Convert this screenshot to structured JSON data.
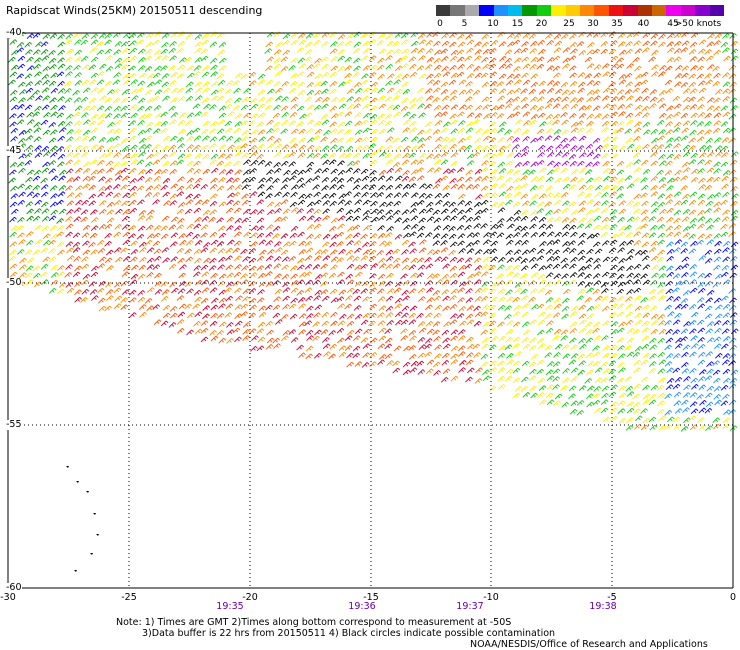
{
  "title": "Rapidscat Winds(25KM) 20150511 descending",
  "colorbar": {
    "colors": [
      "#3a3a3a",
      "#777777",
      "#aaaaaa",
      "#0000ff",
      "#1e90ff",
      "#00bbee",
      "#009900",
      "#11cc11",
      "#ffee00",
      "#ffcc00",
      "#ff8800",
      "#ff5500",
      "#ee1111",
      "#cc0033",
      "#aa3300",
      "#cc6600",
      "#ee00ee",
      "#cc00cc",
      "#8800cc",
      "#5500aa"
    ],
    "labels": [
      "0",
      "5",
      "10",
      "15",
      "20",
      "25",
      "30",
      "35",
      "40",
      "45",
      ">50 knots"
    ]
  },
  "axes": {
    "lat_labels": [
      "-40",
      "-45",
      "-50",
      "-55",
      "-60"
    ],
    "lon_labels": [
      "-30",
      "-25",
      "-20",
      "-15",
      "-10",
      "-5",
      "0"
    ]
  },
  "times": [
    "19:35",
    "19:36",
    "19:37",
    "19:38"
  ],
  "notes": {
    "line1": "Note: 1) Times are GMT 2)Times along bottom correspond to measurement at -50S",
    "line2": "3)Data buffer is 22 hrs from 20150511 4) Black circles indicate possible contamination",
    "line3": "NOAA/NESDIS/Office of Research and Applications"
  }
}
